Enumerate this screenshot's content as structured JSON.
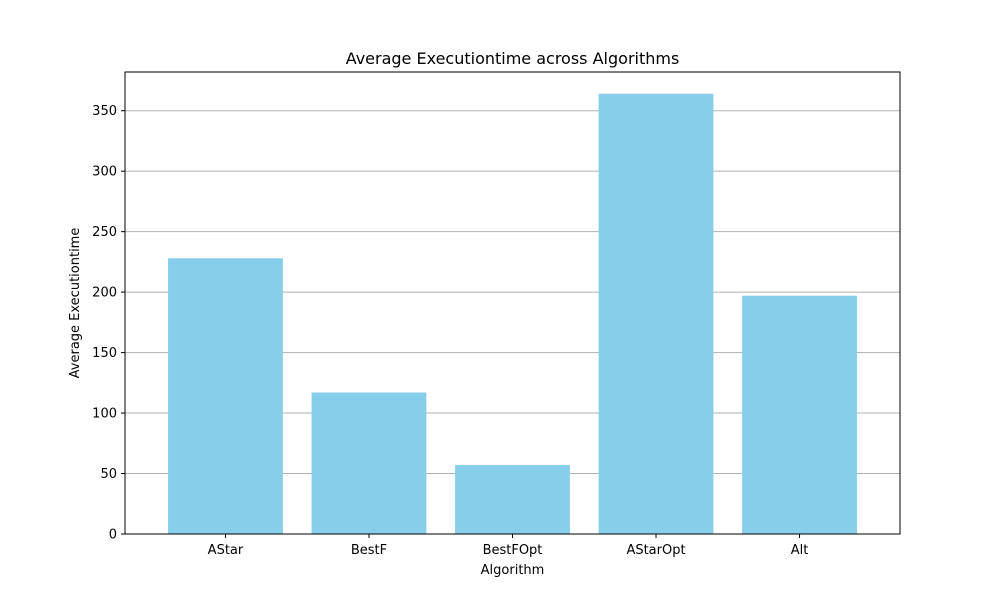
{
  "chart_data": {
    "type": "bar",
    "title": "Average Executiontime across Algorithms",
    "xlabel": "Algorithm",
    "ylabel": "Average Executiontime",
    "categories": [
      "AStar",
      "BestF",
      "BestFOpt",
      "AStarOpt",
      "Alt"
    ],
    "values": [
      228,
      117,
      57,
      364,
      197
    ],
    "ylim": [
      0,
      382
    ],
    "yticks": [
      0,
      50,
      100,
      150,
      200,
      250,
      300,
      350
    ],
    "grid": "horizontal",
    "legend": "none",
    "bar_color": "#87CEEB",
    "grid_color": "#b0b0b0"
  }
}
